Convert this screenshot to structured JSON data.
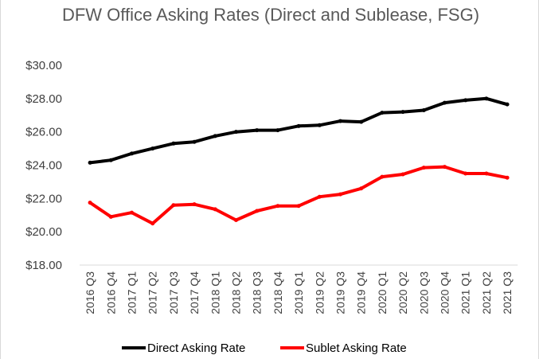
{
  "chart_data": {
    "type": "line",
    "title": "DFW Office Asking Rates (Direct and Sublease, FSG)",
    "xlabel": "",
    "ylabel": "",
    "ylim": [
      18,
      30
    ],
    "yticks": [
      "$18.00",
      "$20.00",
      "$22.00",
      "$24.00",
      "$26.00",
      "$28.00",
      "$30.00"
    ],
    "ytick_values": [
      18,
      20,
      22,
      24,
      26,
      28,
      30
    ],
    "categories": [
      "2016 Q3",
      "2016 Q4",
      "2017 Q1",
      "2017 Q2",
      "2017 Q3",
      "2017 Q4",
      "2018 Q1",
      "2018 Q2",
      "2018 Q3",
      "2018 Q4",
      "2019 Q1",
      "2019 Q2",
      "2019 Q3",
      "2019 Q4",
      "2020 Q1",
      "2020 Q2",
      "2020 Q3",
      "2020 Q4",
      "2021 Q1",
      "2021 Q2",
      "2021 Q3"
    ],
    "series": [
      {
        "name": "Direct Asking Rate",
        "color": "#000000",
        "values": [
          24.15,
          24.3,
          24.7,
          25.0,
          25.3,
          25.4,
          25.75,
          26.0,
          26.1,
          26.1,
          26.35,
          26.4,
          26.65,
          26.6,
          27.15,
          27.2,
          27.3,
          27.75,
          27.9,
          28.0,
          27.65
        ]
      },
      {
        "name": "Sublet Asking Rate",
        "color": "#ff0000",
        "values": [
          21.75,
          20.9,
          21.15,
          20.5,
          21.6,
          21.65,
          21.35,
          20.7,
          21.25,
          21.55,
          21.55,
          22.1,
          22.25,
          22.6,
          23.3,
          23.45,
          23.85,
          23.9,
          23.5,
          23.5,
          23.25
        ]
      }
    ],
    "grid": false,
    "legend_position": "bottom"
  }
}
